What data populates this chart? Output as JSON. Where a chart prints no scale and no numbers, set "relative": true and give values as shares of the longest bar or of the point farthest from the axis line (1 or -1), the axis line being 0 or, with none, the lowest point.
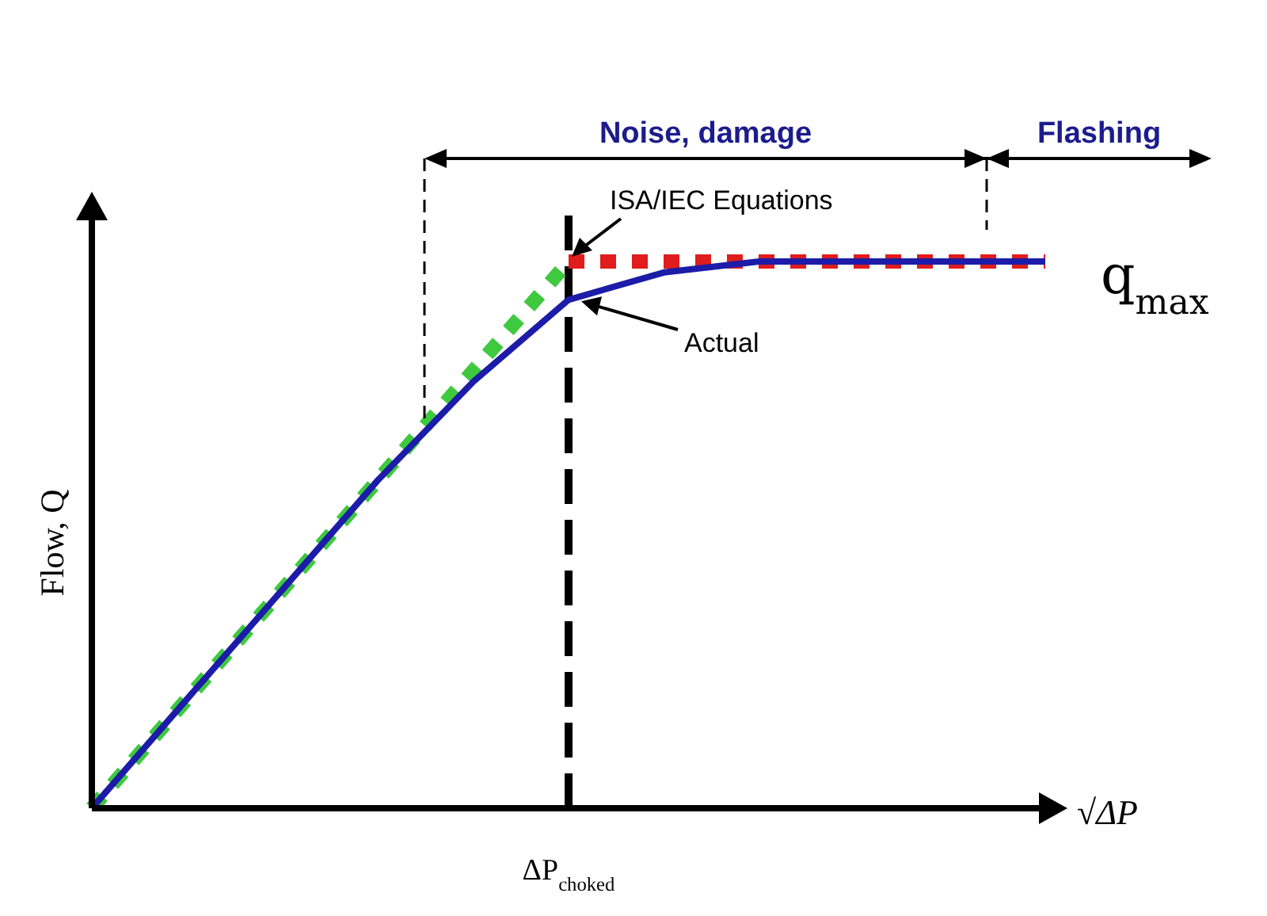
{
  "chart_data": {
    "type": "line",
    "relative": true,
    "xlabel": "√ΔP",
    "ylabel": "Flow, Q",
    "categories": [
      null,
      null,
      null,
      null,
      null,
      null,
      null,
      null,
      null,
      null,
      null
    ],
    "marker": "none",
    "series": [
      {
        "color": "#3ec93e",
        "line_style": "dotted",
        "values": [
          0,
          0.2,
          0.4,
          0.6,
          0.8,
          1,
          null,
          null,
          null,
          null,
          null
        ]
      },
      {
        "color": "#e01c1c",
        "line_style": "dotted",
        "values": [
          null,
          null,
          null,
          null,
          null,
          1,
          1,
          1,
          1,
          1,
          1
        ]
      },
      {
        "color": "#1c1ca8",
        "line_style": "solid",
        "values": [
          0,
          0.2,
          0.4,
          0.6,
          0.78,
          0.93,
          0.98,
          1,
          1,
          1,
          1
        ]
      }
    ],
    "annotations": [
      "ISA/IEC Equations",
      "Actual",
      "q$_{max}$",
      "Noise, damage",
      "Flashing",
      "ΔP$_{choked}$"
    ]
  }
}
